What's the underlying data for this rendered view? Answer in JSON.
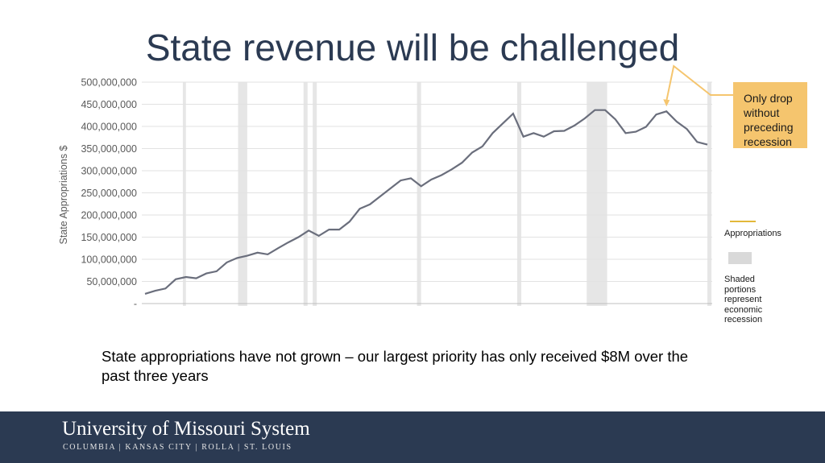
{
  "slide": {
    "title": "State revenue will be challenged",
    "callout": "Only drop without preceding recession",
    "legend_appropriations": "Appropriations",
    "legend_shaded": "Shaded portions represent economic recession",
    "caption": "State appropriations have not grown – our largest priority has only received $8M over the past three years",
    "footer_name": "University of Missouri System",
    "footer_campuses": "COLUMBIA | KANSAS CITY | ROLLA | ST. LOUIS"
  },
  "colors": {
    "line": "#6a6e7c",
    "recession": "#e6e6e6",
    "callout": "#f5c56e",
    "legend_line": "#e3b83a",
    "footer": "#2b3a52"
  },
  "chart_data": {
    "type": "line",
    "ylabel": "State Appropriations $",
    "ylim": [
      0,
      500000000
    ],
    "yticks": [
      0,
      50000000,
      100000000,
      150000000,
      200000000,
      250000000,
      300000000,
      350000000,
      400000000,
      450000000,
      500000000
    ],
    "ytick_labels": [
      "-",
      "50,000,000",
      "100,000,000",
      "150,000,000",
      "200,000,000",
      "250,000,000",
      "300,000,000",
      "350,000,000",
      "400,000,000",
      "450,000,000",
      "500,000,000"
    ],
    "x": [
      1,
      2,
      3,
      4,
      5,
      6,
      7,
      8,
      9,
      10,
      11,
      12,
      13,
      14,
      15,
      16,
      17,
      18,
      19,
      20,
      21,
      22,
      23,
      24,
      25,
      26,
      27,
      28,
      29,
      30,
      31,
      32,
      33,
      34,
      35,
      36,
      37,
      38,
      39,
      40,
      41,
      42,
      43,
      44,
      45,
      46,
      47,
      48,
      49,
      50,
      51,
      52,
      53,
      54,
      55,
      56
    ],
    "series": [
      {
        "values": [
          22000000,
          29000000,
          34000000,
          55000000,
          60000000,
          57000000,
          68000000,
          73000000,
          93000000,
          103000000,
          108000000,
          115000000,
          111000000,
          125000000,
          138000000,
          150000000,
          165000000,
          153000000,
          167000000,
          167000000,
          185000000,
          214000000,
          224000000,
          242000000,
          260000000,
          278000000,
          283000000,
          265000000,
          280000000,
          290000000,
          303000000,
          318000000,
          341000000,
          355000000,
          385000000,
          407000000,
          429000000,
          377000000,
          385000000,
          377000000,
          389000000,
          390000000,
          402000000,
          418000000,
          437000000,
          437000000,
          416000000,
          385000000,
          388000000,
          399000000,
          427000000,
          434000000,
          411000000,
          394000000,
          365000000,
          359000000
        ]
      }
    ],
    "recessions": [
      [
        4.7,
        5.0
      ],
      [
        10.1,
        11.0
      ],
      [
        16.5,
        16.9
      ],
      [
        17.4,
        17.8
      ],
      [
        27.6,
        28.0
      ],
      [
        37.4,
        37.8
      ],
      [
        44.2,
        46.2
      ],
      [
        56.0,
        56.4
      ]
    ],
    "annotation_point": 52,
    "grid": true,
    "legend": "right"
  }
}
